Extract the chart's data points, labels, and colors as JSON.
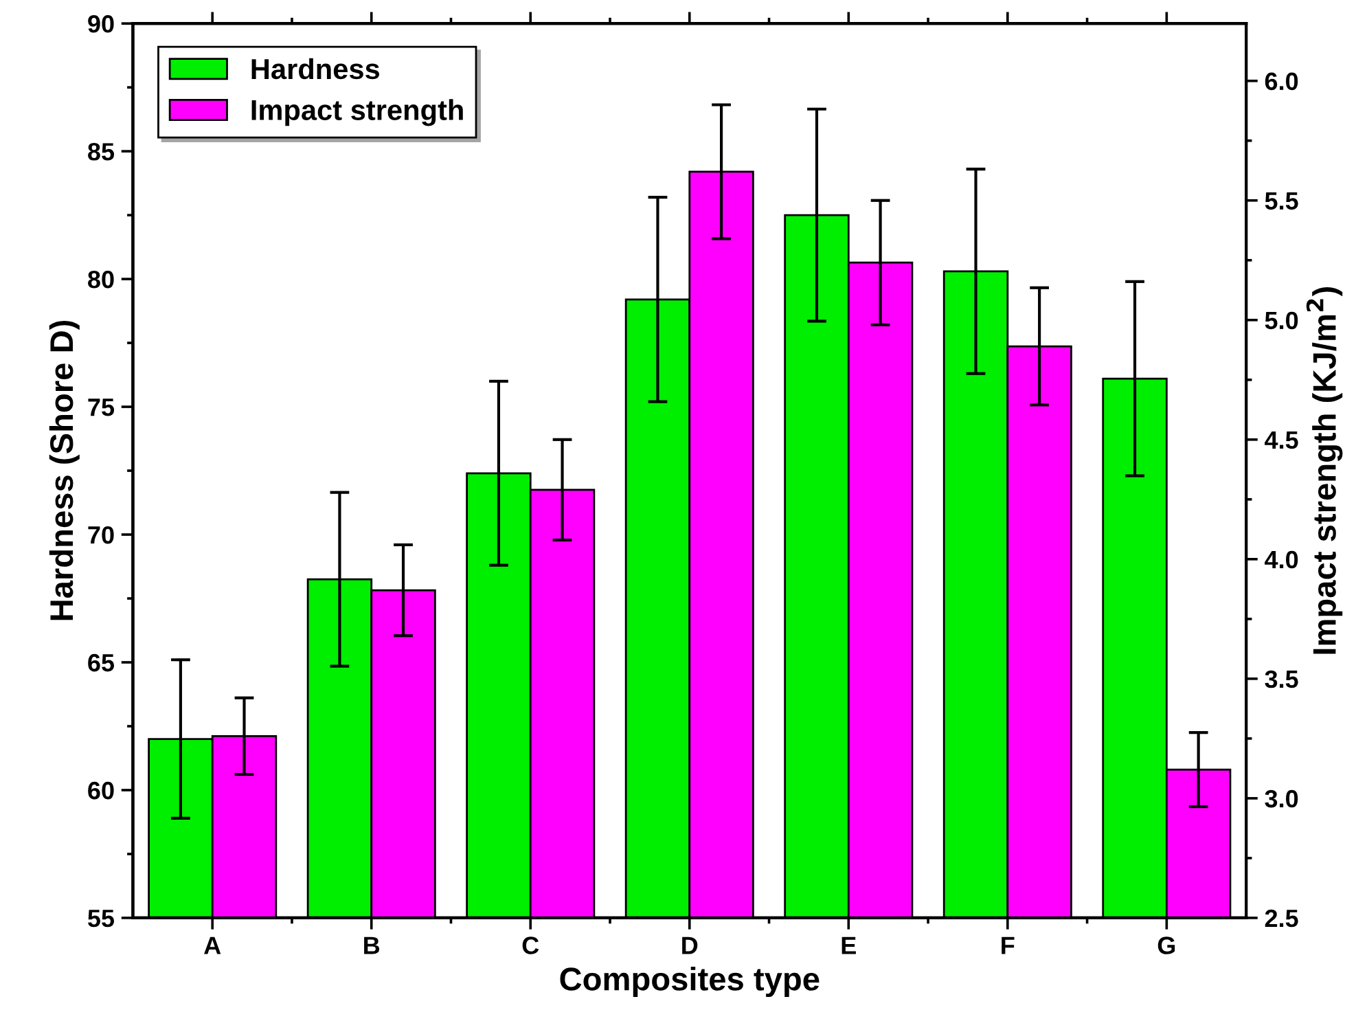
{
  "chart_data": {
    "type": "bar",
    "xlabel": "Composites type",
    "ylabel": "Hardness (Shore D)",
    "y2label": "Impact strength (KJ/m$^{2}$)",
    "categories": [
      "A",
      "B",
      "C",
      "D",
      "E",
      "F",
      "G"
    ],
    "series": [
      {
        "name": "Hardness",
        "color": "#00ee00",
        "values": [
          62.0,
          68.25,
          72.4,
          79.2,
          82.5,
          80.3,
          76.1
        ],
        "errors": [
          3.1,
          3.4,
          3.6,
          4.0,
          4.15,
          4.0,
          3.8
        ]
      },
      {
        "name": "Impact strength",
        "color": "#ff00ff",
        "axis": "y2",
        "values": [
          3.26,
          3.87,
          4.29,
          5.62,
          5.24,
          4.89,
          3.12
        ],
        "errors": [
          0.16,
          0.19,
          0.21,
          0.28,
          0.26,
          0.245,
          0.155
        ]
      }
    ],
    "ylim": [
      55,
      90
    ],
    "yticks": [
      55,
      60,
      65,
      70,
      75,
      80,
      85,
      90
    ],
    "y2lim": [
      2.5,
      6.24
    ],
    "y2ticks": [
      2.5,
      {
        "value": 3,
        "label": "3.0"
      },
      3.5,
      {
        "value": 4,
        "label": "4.0"
      },
      4.5,
      {
        "value": 5,
        "label": "5.0"
      },
      5.5,
      {
        "value": 6,
        "label": "6.0"
      }
    ],
    "legend": "top left",
    "grid": false
  }
}
